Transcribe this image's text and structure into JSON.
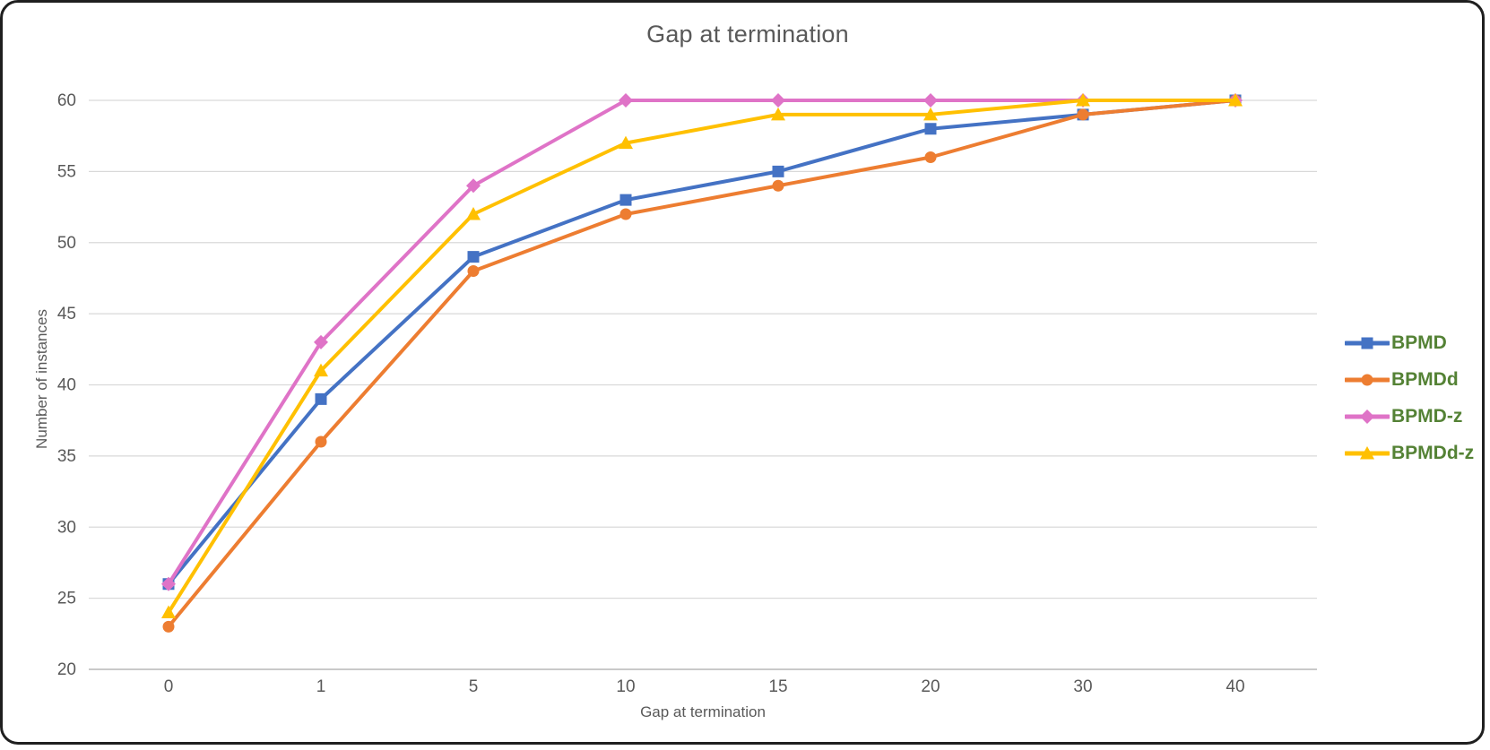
{
  "chart_data": {
    "type": "line",
    "title": "Gap at termination",
    "xlabel": "Gap at termination",
    "ylabel": "Number of instances",
    "categories": [
      "0",
      "1",
      "5",
      "10",
      "15",
      "20",
      "30",
      "40"
    ],
    "yticks": [
      20,
      25,
      30,
      35,
      40,
      45,
      50,
      55,
      60
    ],
    "ylim": [
      20,
      60
    ],
    "grid": "horizontal",
    "legend_position": "right",
    "series": [
      {
        "name": "BPMD",
        "color": "#4472C4",
        "marker": "square",
        "values": [
          26,
          39,
          49,
          53,
          55,
          58,
          59,
          60
        ]
      },
      {
        "name": "BPMDd",
        "color": "#ED7D31",
        "marker": "circle",
        "values": [
          23,
          36,
          48,
          52,
          54,
          56,
          59,
          60
        ]
      },
      {
        "name": "BPMD-z",
        "color": "#DF73C7",
        "marker": "diamond",
        "values": [
          26,
          43,
          54,
          60,
          60,
          60,
          60,
          60
        ]
      },
      {
        "name": "BPMDd-z",
        "color": "#FFC000",
        "marker": "triangle",
        "values": [
          24,
          41,
          52,
          57,
          59,
          59,
          60,
          60
        ]
      }
    ]
  },
  "colors": {
    "title_text": "#595959",
    "tick_text": "#595959",
    "gridline": "#D9D9D9",
    "axis_line": "#C9C9C9",
    "legend_text": "#548235"
  }
}
